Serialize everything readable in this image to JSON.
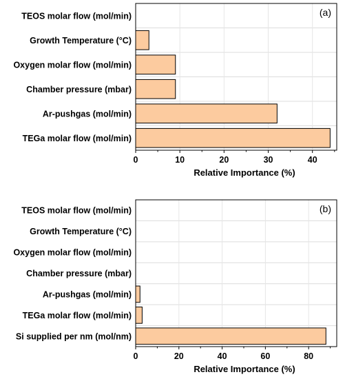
{
  "chart_data": [
    {
      "type": "bar",
      "orientation": "horizontal",
      "panel_label": "(a)",
      "categories": [
        "TEOS molar flow (mol/min)",
        "Growth Temperature (°C)",
        "Oxygen molar flow (mol/min)",
        "Chamber pressure (mbar)",
        "Ar-pushgas (mol/min)",
        "TEGa molar flow (mol/min)"
      ],
      "values": [
        0,
        3,
        9,
        9,
        32,
        44
      ],
      "xlabel": "Relative Importance (%)",
      "xlim": [
        0,
        45.5
      ],
      "xticks": [
        0,
        10,
        20,
        30,
        40
      ],
      "bar_color": "#fccb9f",
      "grid": true
    },
    {
      "type": "bar",
      "orientation": "horizontal",
      "panel_label": "(b)",
      "categories": [
        "TEOS molar flow (mol/min)",
        "Growth Temperature (°C)",
        "Oxygen molar flow (mol/min)",
        "Chamber pressure (mbar)",
        "Ar-pushgas (mol/min)",
        "TEGa molar flow (mol/min)",
        "Si supplied per nm (mol/nm)"
      ],
      "values": [
        0,
        0,
        0,
        0,
        2,
        3,
        88
      ],
      "xlabel": "Relative Importance (%)",
      "xlim": [
        0,
        93
      ],
      "xticks": [
        0,
        20,
        40,
        60,
        80
      ],
      "bar_color": "#fccb9f",
      "grid": true
    }
  ]
}
